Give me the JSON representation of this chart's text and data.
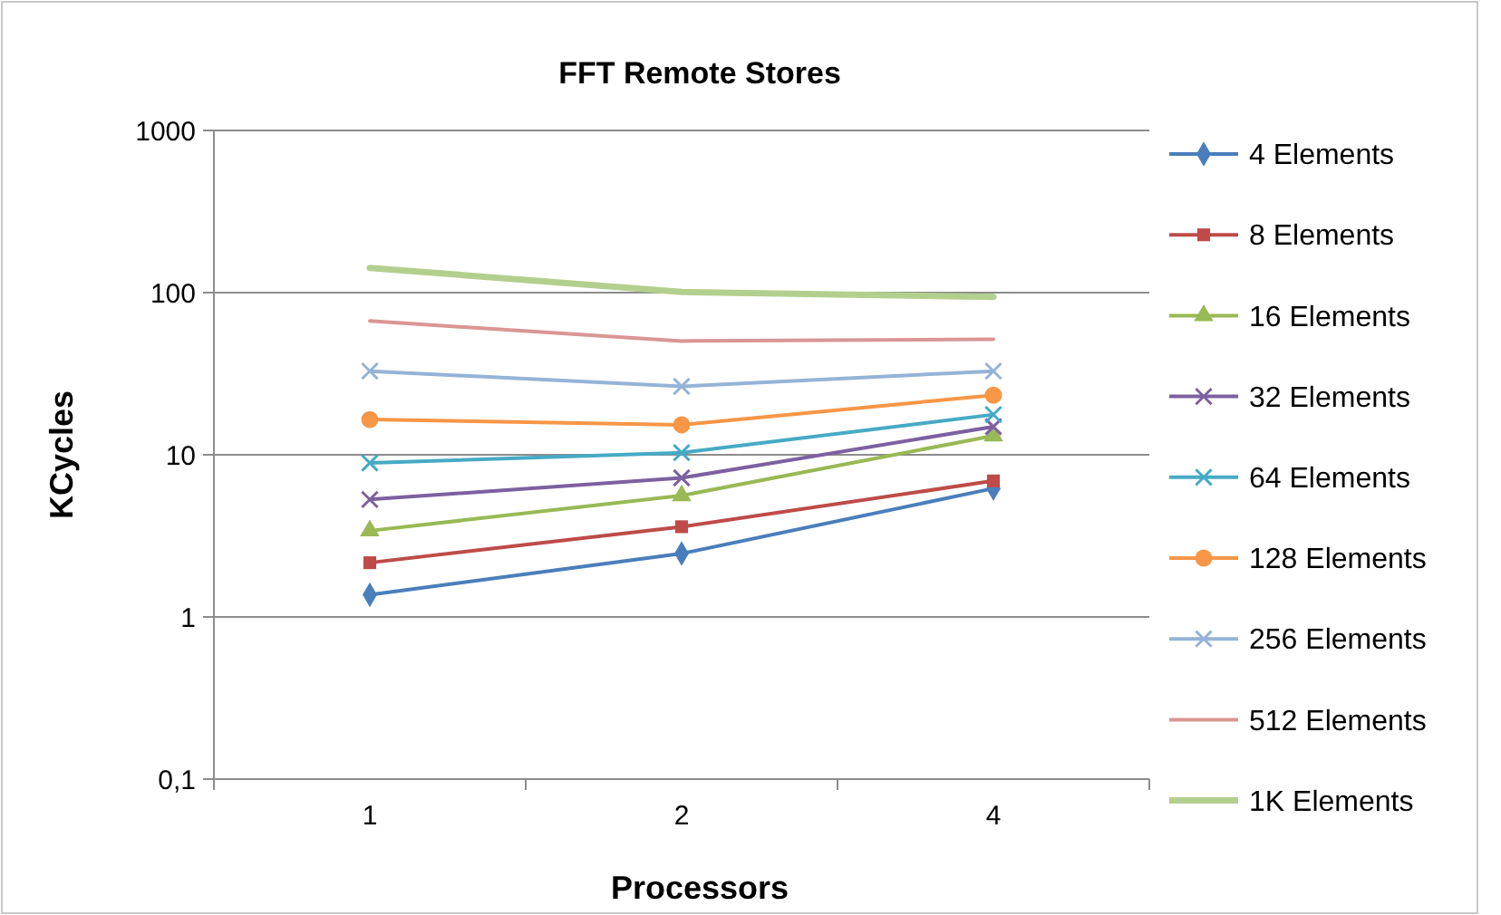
{
  "chart_data": {
    "type": "line",
    "title": "FFT Remote Stores",
    "xlabel": "Processors",
    "ylabel": "KCycles",
    "categories": [
      "1",
      "2",
      "4"
    ],
    "log": "y",
    "ylim": [
      0.1,
      1000
    ],
    "yticks": [
      {
        "value": 0.1,
        "label": "0,1"
      },
      1,
      10,
      100,
      1000
    ],
    "grid": "y",
    "legend": "right",
    "line_style": "solid",
    "series": [
      {
        "name": "4 Elements",
        "color": "#4a7ebb",
        "marker": "diamond",
        "values": [
          1.37,
          2.46,
          6.2
        ]
      },
      {
        "name": "8 Elements",
        "color": "#be4b48",
        "marker": "square",
        "values": [
          2.16,
          3.6,
          6.9
        ]
      },
      {
        "name": "16 Elements",
        "color": "#98b954",
        "marker": "triangle",
        "values": [
          3.4,
          5.6,
          13.1
        ]
      },
      {
        "name": "32 Elements",
        "color": "#7d60a0",
        "marker": "cross",
        "values": [
          5.3,
          7.2,
          14.9
        ]
      },
      {
        "name": "64 Elements",
        "color": "#46aac5",
        "marker": "cross",
        "values": [
          8.9,
          10.3,
          17.7
        ]
      },
      {
        "name": "128 Elements",
        "color": "#f79646",
        "marker": "circle",
        "values": [
          16.5,
          15.3,
          23.3
        ]
      },
      {
        "name": "256 Elements",
        "color": "#95b3d7",
        "marker": "cross",
        "values": [
          32.8,
          26.4,
          32.8
        ]
      },
      {
        "name": "512 Elements",
        "color": "#d99694",
        "marker": "none",
        "values": [
          66.8,
          50.3,
          51.6
        ]
      },
      {
        "name": "1K Elements",
        "color": "#b3cf8e",
        "marker": "none",
        "values": [
          142,
          101,
          94
        ]
      }
    ]
  }
}
